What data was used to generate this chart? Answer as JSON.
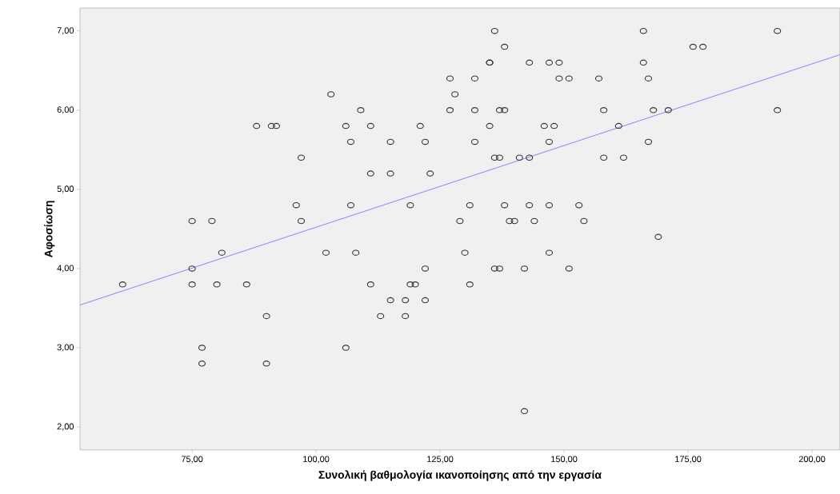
{
  "chart_data": {
    "type": "scatter",
    "xlabel": "Συνολική βαθμολογία ικανοποίησης από την εργασία",
    "ylabel": "Αφοσίωση",
    "xlim": [
      52.4,
      205.6
    ],
    "ylim": [
      1.71,
      7.29
    ],
    "xticks": [
      {
        "value": 75,
        "label": "75,00"
      },
      {
        "value": 100,
        "label": "100,00"
      },
      {
        "value": 125,
        "label": "125,00"
      },
      {
        "value": 150,
        "label": "150,00"
      },
      {
        "value": 175,
        "label": "175,00"
      },
      {
        "value": 200,
        "label": "200,00"
      }
    ],
    "yticks": [
      {
        "value": 2,
        "label": "2,00"
      },
      {
        "value": 3,
        "label": "3,00"
      },
      {
        "value": 4,
        "label": "4,00"
      },
      {
        "value": 5,
        "label": "5,00"
      },
      {
        "value": 6,
        "label": "6,00"
      },
      {
        "value": 7,
        "label": "7,00"
      }
    ],
    "series": [
      {
        "color": "#333333",
        "marker": "circle",
        "x": [
          61,
          75,
          75,
          75,
          77,
          77,
          79,
          80,
          81,
          86,
          88,
          90,
          90,
          91,
          92,
          96,
          97,
          97,
          102,
          103,
          106,
          106,
          107,
          107,
          108,
          109,
          111,
          111,
          111,
          113,
          115,
          115,
          115,
          118,
          118,
          119,
          119,
          120,
          121,
          122,
          122,
          122,
          123,
          127,
          127,
          128,
          129,
          130,
          131,
          131,
          132,
          132,
          132,
          135,
          135,
          135,
          136,
          136,
          136,
          137,
          137,
          137,
          138,
          138,
          138,
          139,
          140,
          141,
          142,
          142,
          143,
          143,
          143,
          144,
          146,
          147,
          147,
          147,
          147,
          148,
          149,
          149,
          151,
          151,
          153,
          154,
          157,
          158,
          158,
          161,
          162,
          166,
          166,
          167,
          167,
          168,
          169,
          171,
          176,
          178,
          193,
          193
        ],
        "values": [
          3.8,
          4.6,
          4.0,
          3.8,
          3.0,
          2.8,
          4.6,
          3.8,
          4.2,
          3.8,
          5.8,
          3.4,
          2.8,
          5.8,
          5.8,
          4.8,
          5.4,
          4.6,
          4.2,
          6.2,
          5.8,
          3.0,
          5.6,
          4.8,
          4.2,
          6.0,
          5.8,
          5.2,
          3.8,
          3.4,
          5.6,
          5.2,
          3.6,
          3.6,
          3.4,
          4.8,
          3.8,
          3.8,
          5.8,
          5.6,
          4.0,
          3.6,
          5.2,
          6.4,
          6.0,
          6.2,
          4.6,
          4.2,
          4.8,
          3.8,
          6.4,
          6.0,
          5.6,
          6.6,
          6.6,
          5.8,
          7.0,
          5.4,
          4.0,
          5.4,
          6.0,
          4.0,
          6.8,
          6.0,
          4.8,
          4.6,
          4.6,
          5.4,
          4.0,
          2.2,
          6.6,
          5.4,
          4.8,
          4.6,
          5.8,
          6.6,
          5.6,
          4.8,
          4.2,
          5.8,
          6.6,
          6.4,
          6.4,
          4.0,
          4.8,
          4.6,
          6.4,
          6.0,
          5.4,
          5.8,
          5.4,
          7.0,
          6.6,
          6.4,
          5.6,
          6.0,
          4.4,
          6.0,
          6.8,
          6.8,
          7.0,
          6.0
        ]
      },
      {
        "type": "line",
        "color": "#7b7bff",
        "marker": "none",
        "line_style": "solid",
        "x": [
          52.4,
          205.6
        ],
        "values": [
          3.54,
          6.7
        ]
      }
    ]
  }
}
